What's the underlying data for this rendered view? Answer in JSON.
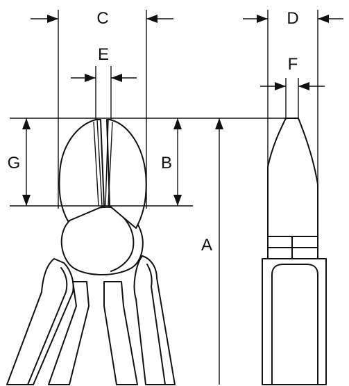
{
  "dimensions": {
    "A": "A",
    "B": "B",
    "C": "C",
    "D": "D",
    "E": "E",
    "F": "F",
    "G": "G"
  },
  "colors": {
    "line": "#111111",
    "background": "#ffffff"
  }
}
